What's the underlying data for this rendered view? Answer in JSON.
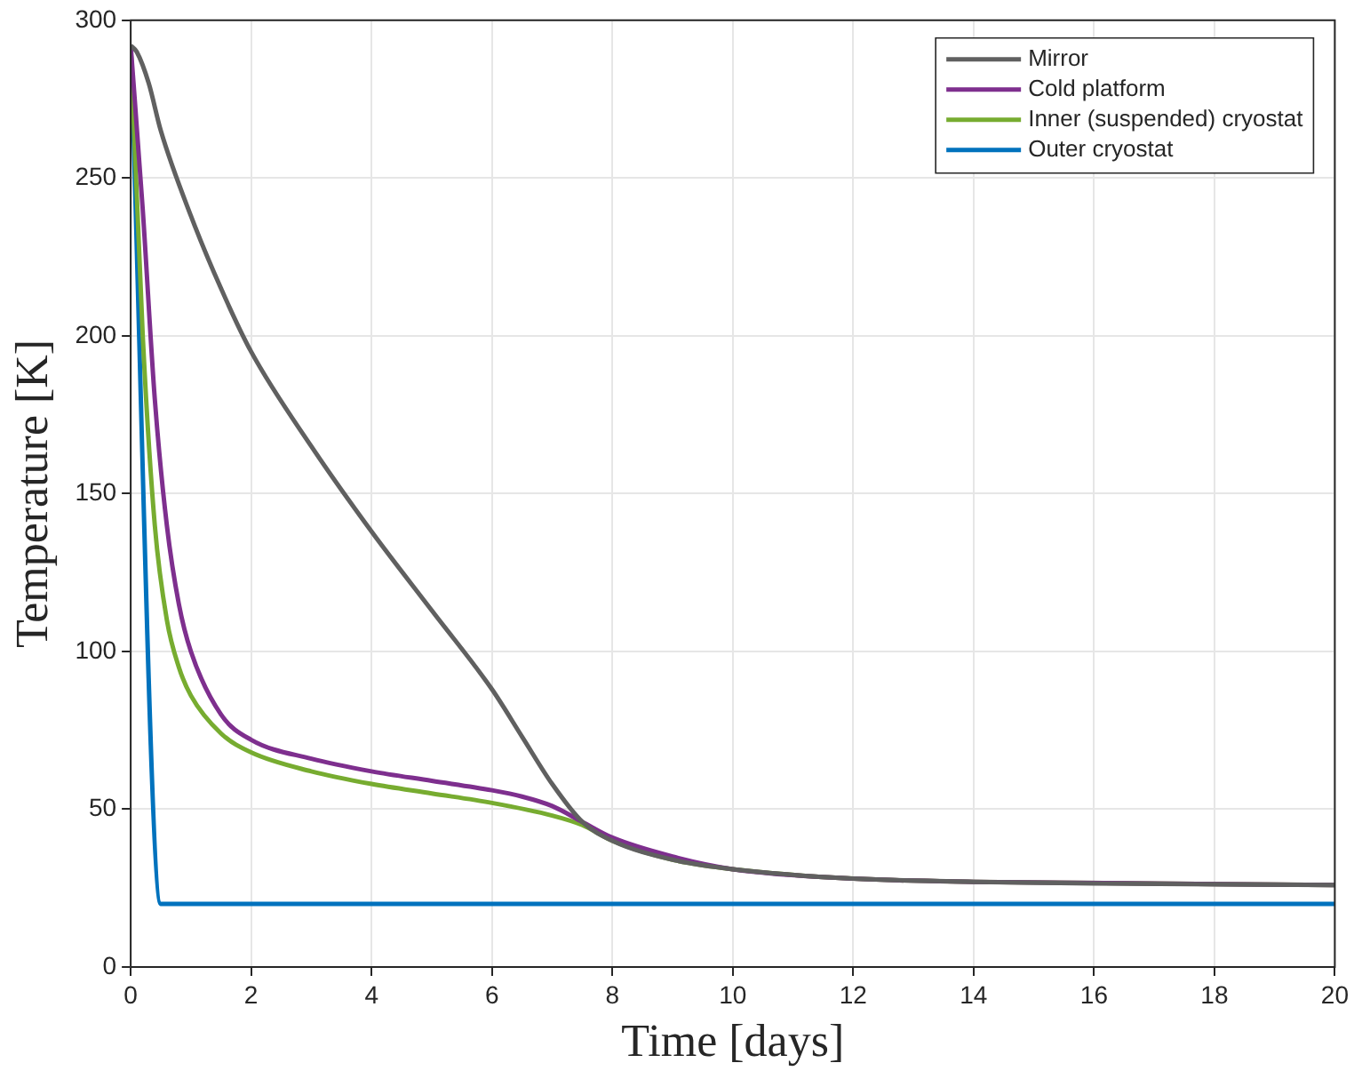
{
  "chart_data": {
    "type": "line",
    "xlabel": "Time [days]",
    "ylabel": "Temperature [K]",
    "xlim": [
      0,
      20
    ],
    "xticks": [
      0,
      2,
      4,
      6,
      8,
      10,
      12,
      14,
      16,
      18,
      20
    ],
    "ylim": [
      0,
      300
    ],
    "yticks": [
      0,
      50,
      100,
      150,
      200,
      250,
      300
    ],
    "grid": true,
    "legend": "top right",
    "marker": "none",
    "line_style": "solid",
    "series": [
      {
        "name": "Mirror",
        "color": "#606060",
        "x": [
          0,
          0.1,
          0.3,
          0.5,
          1,
          1.5,
          2,
          3,
          4,
          5,
          6,
          6.5,
          7,
          7.5,
          8,
          9,
          10,
          12,
          14,
          16,
          20
        ],
        "values": [
          292,
          290,
          280,
          265,
          238,
          215,
          195,
          165,
          138,
          113,
          88,
          73,
          58,
          46,
          40,
          34,
          31,
          28,
          27,
          26.5,
          26
        ]
      },
      {
        "name": "Cold platform",
        "color": "#7e2f8e",
        "x": [
          0,
          0.2,
          0.4,
          0.6,
          0.8,
          1,
          1.5,
          2,
          3,
          4,
          5,
          6,
          6.5,
          7,
          7.5,
          8,
          9,
          10,
          12,
          14,
          20
        ],
        "values": [
          292,
          240,
          180,
          140,
          115,
          100,
          80,
          72,
          66,
          62,
          59,
          56,
          54,
          51,
          46,
          41,
          35,
          31,
          28,
          27,
          26
        ]
      },
      {
        "name": "Inner (suspended) cryostat",
        "color": "#77ac30",
        "x": [
          0,
          0.2,
          0.4,
          0.6,
          0.8,
          1,
          1.5,
          2,
          3,
          4,
          5,
          6,
          7,
          7.5,
          8,
          9,
          10,
          12,
          14,
          20
        ],
        "values": [
          292,
          200,
          140,
          110,
          95,
          86,
          74,
          68,
          62,
          58,
          55,
          52,
          48,
          45,
          40,
          34,
          31,
          28,
          27,
          26
        ]
      },
      {
        "name": "Outer cryostat",
        "color": "#0072bd",
        "x": [
          0,
          0.5,
          20
        ],
        "values": [
          292,
          20,
          20
        ]
      }
    ]
  }
}
